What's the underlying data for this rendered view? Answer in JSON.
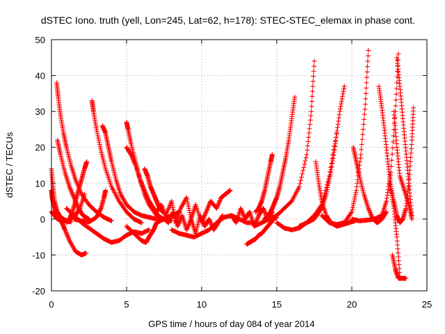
{
  "chart_data": {
    "type": "scatter",
    "title": "dSTEC Iono. truth (yell, Lon=245, Lat=62, h=178): STEC-STEC_elemax in phase cont.",
    "xlabel": "GPS time / hours of day 084 of year 2014",
    "ylabel": "dSTEC  / TECUs",
    "xlim": [
      0,
      25
    ],
    "ylim": [
      -20,
      50
    ],
    "xticks": [
      0,
      5,
      10,
      15,
      20,
      25
    ],
    "yticks": [
      -20,
      -10,
      0,
      10,
      20,
      30,
      40,
      50
    ],
    "grid": true,
    "marker": "+",
    "color": "#ff0000",
    "series": [
      {
        "x": [
          0.0,
          0.1,
          0.2,
          0.4,
          0.6,
          0.8,
          1.0,
          1.3
        ],
        "y": [
          14,
          9,
          5,
          2,
          0.5,
          0,
          -0.5,
          -0.8
        ]
      },
      {
        "x": [
          0.0,
          0.05,
          0.15,
          0.3,
          0.5,
          0.7,
          0.9,
          1.2,
          1.6,
          2.0,
          2.3
        ],
        "y": [
          8,
          6,
          4,
          2,
          1,
          -1,
          -3,
          -6,
          -9,
          -10,
          -9.5
        ]
      },
      {
        "x": [
          0.35,
          0.45,
          0.6,
          0.8,
          1.0,
          1.3,
          1.6,
          2.0,
          2.5,
          3.0,
          3.5,
          4.0
        ],
        "y": [
          38,
          34,
          29,
          24,
          20,
          15,
          11,
          7,
          4,
          2,
          0.5,
          -0.5
        ]
      },
      {
        "x": [
          0.4,
          0.6,
          0.9,
          1.2,
          1.5,
          1.8,
          2.1,
          2.5
        ],
        "y": [
          22,
          18,
          13,
          9,
          6,
          3,
          1,
          0
        ]
      },
      {
        "x": [
          0.0,
          0.2,
          0.4,
          0.7,
          1.0,
          1.3,
          1.6,
          1.9,
          2.2
        ],
        "y": [
          2,
          1,
          0,
          -0.5,
          -0.5,
          0,
          1,
          3,
          7
        ]
      },
      {
        "x": [
          1.0,
          1.2,
          1.4,
          1.6,
          1.8,
          2.0,
          2.2,
          2.35
        ],
        "y": [
          -1,
          0,
          2,
          5,
          8,
          11,
          14,
          16
        ]
      },
      {
        "x": [
          2.7,
          2.8,
          3.0,
          3.3,
          3.6,
          4.0,
          4.5,
          5.0,
          5.5,
          6.0
        ],
        "y": [
          33,
          30,
          25,
          19,
          14,
          9,
          5,
          2,
          0,
          -1
        ]
      },
      {
        "x": [
          1.5,
          2.0,
          2.5,
          3.0,
          3.3,
          3.5,
          3.6
        ],
        "y": [
          0,
          -0.5,
          -0.8,
          0.5,
          3,
          6,
          8
        ]
      },
      {
        "x": [
          3.4,
          3.6,
          3.8,
          4.0,
          4.3,
          4.6,
          5.0,
          5.5,
          6.0,
          6.5,
          7.0,
          7.5,
          8.0
        ],
        "y": [
          26,
          24,
          20,
          16,
          11,
          7,
          4,
          2,
          1,
          0.5,
          0,
          0,
          1
        ]
      },
      {
        "x": [
          1.0,
          1.5,
          2.0,
          2.5,
          3.0,
          3.5,
          4.0,
          4.5,
          5.0,
          5.5,
          6.0,
          6.5
        ],
        "y": [
          3,
          1,
          -1,
          -2.5,
          -4,
          -5.5,
          -6.5,
          -6,
          -4.5,
          -3.5,
          -4,
          -3
        ]
      },
      {
        "x": [
          5.0,
          5.1,
          5.3,
          5.6,
          5.9,
          6.2,
          6.5,
          7.0,
          7.5,
          8.0
        ],
        "y": [
          27,
          25,
          21,
          16,
          11,
          7,
          4,
          1,
          0,
          -0.5
        ]
      },
      {
        "x": [
          5.0,
          5.3,
          5.6,
          5.9,
          6.2,
          6.5,
          6.8,
          7.1,
          7.4
        ],
        "y": [
          20,
          18,
          15,
          11,
          8,
          5,
          3,
          1,
          0
        ]
      },
      {
        "x": [
          5.0,
          5.5,
          6.0,
          6.3,
          6.5,
          6.8,
          7.0,
          7.5,
          8.0,
          8.5
        ],
        "y": [
          -2,
          -4,
          -6,
          -6.5,
          -5,
          -3,
          -1,
          0,
          1,
          2
        ]
      },
      {
        "x": [
          6.2,
          6.4,
          6.6,
          6.8,
          7.0,
          7.2,
          7.4
        ],
        "y": [
          14,
          12,
          9,
          7,
          5,
          3,
          2
        ]
      },
      {
        "x": [
          7.0,
          7.3,
          7.6,
          8.0,
          8.3,
          8.6,
          9.0,
          9.3,
          9.6,
          10.0,
          10.3,
          10.6,
          11.0,
          11.3,
          11.6,
          11.9
        ],
        "y": [
          2,
          4,
          1,
          5,
          -1,
          3,
          6,
          0,
          4,
          -1,
          2,
          5,
          3,
          6,
          7,
          8
        ]
      },
      {
        "x": [
          7.5,
          7.8,
          8.1,
          8.4,
          8.7,
          9.0,
          9.3,
          9.6,
          9.9,
          10.2,
          10.5,
          10.8,
          11.1,
          11.4
        ],
        "y": [
          0,
          -1,
          2,
          -2,
          1,
          -3,
          0,
          -4,
          1,
          -2,
          0,
          -3,
          -1,
          1
        ]
      },
      {
        "x": [
          8.0,
          8.5,
          9.0,
          9.5,
          10.0,
          10.5,
          11.0,
          11.5,
          12.0,
          12.5,
          13.0,
          13.5
        ],
        "y": [
          -3,
          -4,
          -4.5,
          -5,
          -4,
          -3,
          -1,
          0.5,
          1,
          0,
          -1,
          -1
        ]
      },
      {
        "x": [
          12.0,
          12.3,
          12.6,
          12.9,
          13.2,
          13.5,
          13.8,
          14.1,
          14.4,
          14.7
        ],
        "y": [
          1,
          -1,
          3,
          0,
          2,
          -2,
          1,
          3,
          0,
          2
        ]
      },
      {
        "x": [
          13.0,
          13.2,
          13.4,
          13.6,
          13.8,
          14.0,
          14.2,
          14.4,
          14.6,
          14.8,
          15.0
        ],
        "y": [
          -7,
          -6.5,
          -6,
          -5.5,
          -4.5,
          -4,
          -3,
          -2,
          -1,
          0,
          0.5
        ]
      },
      {
        "x": [
          13.6,
          13.8,
          14.0,
          14.2,
          14.4,
          14.6,
          14.7
        ],
        "y": [
          2,
          3,
          5,
          8,
          12,
          16,
          18
        ]
      },
      {
        "x": [
          14.2,
          14.4,
          14.6,
          14.8,
          15.0,
          15.2,
          15.4,
          15.6,
          15.8,
          16.0,
          16.2
        ],
        "y": [
          0,
          1,
          2,
          4,
          6,
          9,
          13,
          17,
          22,
          28,
          34
        ]
      },
      {
        "x": [
          13.5,
          14.0,
          14.5,
          15.0,
          15.5,
          16.0,
          16.5,
          17.0,
          17.3,
          17.5
        ],
        "y": [
          -2,
          -1,
          0,
          1,
          3,
          5,
          9,
          18,
          30,
          44
        ]
      },
      {
        "x": [
          15.0,
          15.5,
          16.0,
          16.5,
          17.0,
          17.5,
          18.0,
          18.5,
          19.0
        ],
        "y": [
          -1,
          -2.5,
          -3,
          -2.5,
          -1,
          1,
          4,
          12,
          24
        ]
      },
      {
        "x": [
          16.5,
          17.0,
          17.5,
          18.0,
          18.3,
          18.6,
          18.9,
          19.2,
          19.5
        ],
        "y": [
          -2,
          -1,
          0,
          3,
          7,
          13,
          21,
          30,
          37
        ]
      },
      {
        "x": [
          17.6,
          17.8,
          18.0,
          18.3,
          18.6,
          19.0,
          19.4,
          19.8,
          20.2
        ],
        "y": [
          16,
          10,
          5,
          1,
          -1,
          -2,
          -1.5,
          -1,
          -0.5
        ]
      },
      {
        "x": [
          18.0,
          18.5,
          19.0,
          19.5,
          20.0,
          20.3,
          20.6,
          20.9,
          21.1
        ],
        "y": [
          1,
          -1,
          -1.5,
          -1,
          2,
          8,
          18,
          32,
          47
        ]
      },
      {
        "x": [
          20.1,
          20.3,
          20.5,
          20.8,
          21.1,
          21.4,
          21.7,
          22.0,
          22.3
        ],
        "y": [
          20,
          16,
          12,
          7,
          3,
          0,
          -1,
          0,
          2
        ]
      },
      {
        "x": [
          20.0,
          20.5,
          21.0,
          21.5,
          22.0,
          22.3,
          22.6,
          22.9,
          23.1
        ],
        "y": [
          0,
          -0.5,
          -0.3,
          0,
          1,
          5,
          13,
          30,
          46
        ]
      },
      {
        "x": [
          21.8,
          22.0,
          22.2,
          22.4,
          22.6,
          22.8,
          23.0,
          23.2
        ],
        "y": [
          37,
          31,
          24,
          16,
          9,
          3,
          -5,
          -16
        ]
      },
      {
        "x": [
          22.7,
          22.9,
          23.1,
          23.3,
          23.5,
          23.6
        ],
        "y": [
          -10,
          -14,
          -16.5,
          -16.5,
          -16.5,
          -16.5
        ]
      },
      {
        "x": [
          22.5,
          22.8,
          23.0,
          23.2,
          23.4,
          23.6,
          23.8,
          24.0,
          24.1
        ],
        "y": [
          10,
          5,
          1,
          -1,
          0,
          3,
          10,
          22,
          31
        ]
      },
      {
        "x": [
          23.0,
          23.2,
          23.4,
          23.6,
          23.8,
          24.0
        ],
        "y": [
          45,
          37,
          28,
          19,
          10,
          1
        ]
      },
      {
        "x": [
          22.8,
          23.0,
          23.2,
          23.5,
          23.8,
          24.0
        ],
        "y": [
          30,
          20,
          12,
          8,
          4,
          0
        ]
      }
    ]
  }
}
